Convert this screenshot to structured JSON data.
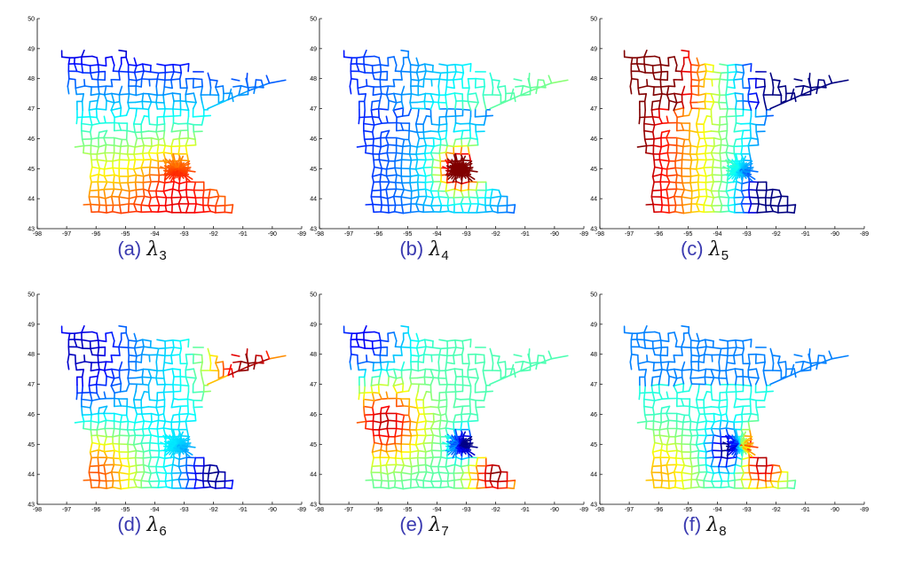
{
  "figure": {
    "panels": [
      {
        "caption_label": "(a)",
        "eigen_symbol": "λ",
        "eigen_index": "3"
      },
      {
        "caption_label": "(b)",
        "eigen_symbol": "λ",
        "eigen_index": "4"
      },
      {
        "caption_label": "(c)",
        "eigen_symbol": "λ",
        "eigen_index": "5"
      },
      {
        "caption_label": "(d)",
        "eigen_symbol": "λ",
        "eigen_index": "6"
      },
      {
        "caption_label": "(e)",
        "eigen_symbol": "λ",
        "eigen_index": "7"
      },
      {
        "caption_label": "(f)",
        "eigen_symbol": "λ",
        "eigen_index": "8"
      }
    ]
  },
  "chart_data": [
    {
      "type": "line",
      "title": "",
      "xlabel": "",
      "ylabel": "",
      "xlim": [
        -98,
        -89
      ],
      "ylim": [
        43,
        50
      ],
      "xticks": [
        "-98",
        "-97",
        "-96",
        "-95",
        "-94",
        "-93",
        "-92",
        "-91",
        "-90",
        "-89"
      ],
      "yticks": [
        "43",
        "44",
        "45",
        "46",
        "47",
        "48",
        "49",
        "50"
      ],
      "grid": false,
      "colormap": "jet",
      "caption": "(a) λ3",
      "pattern": "north-south gradient: blue north, red south-east"
    },
    {
      "type": "line",
      "title": "",
      "xlabel": "",
      "ylabel": "",
      "xlim": [
        -98,
        -89
      ],
      "ylim": [
        43,
        50
      ],
      "xticks": [
        "-98",
        "-97",
        "-96",
        "-95",
        "-94",
        "-93",
        "-92",
        "-91",
        "-90",
        "-89"
      ],
      "yticks": [
        "43",
        "44",
        "45",
        "46",
        "47",
        "48",
        "49",
        "50"
      ],
      "grid": false,
      "colormap": "jet",
      "caption": "(b) λ4",
      "pattern": "red concentrated near (-93.2, 45.0), blue elsewhere"
    },
    {
      "type": "line",
      "title": "",
      "xlabel": "",
      "ylabel": "",
      "xlim": [
        -98,
        -89
      ],
      "ylim": [
        43,
        50
      ],
      "xticks": [
        "-98",
        "-97",
        "-96",
        "-95",
        "-94",
        "-93",
        "-92",
        "-91",
        "-90",
        "-89"
      ],
      "yticks": [
        "43",
        "44",
        "45",
        "46",
        "47",
        "48",
        "49",
        "50"
      ],
      "grid": false,
      "colormap": "jet",
      "caption": "(c) λ5",
      "pattern": "red south-west, blue north-east and south-east"
    },
    {
      "type": "line",
      "title": "",
      "xlabel": "",
      "ylabel": "",
      "xlim": [
        -98,
        -89
      ],
      "ylim": [
        43,
        50
      ],
      "xticks": [
        "-98",
        "-97",
        "-96",
        "-95",
        "-94",
        "-93",
        "-92",
        "-91",
        "-90",
        "-89"
      ],
      "yticks": [
        "43",
        "44",
        "45",
        "46",
        "47",
        "48",
        "49",
        "50"
      ],
      "grid": false,
      "colormap": "jet",
      "caption": "(d) λ6",
      "pattern": "red north-east arm and south-west, blue north-west and south-east"
    },
    {
      "type": "line",
      "title": "",
      "xlabel": "",
      "ylabel": "",
      "xlim": [
        -98,
        -89
      ],
      "ylim": [
        43,
        50
      ],
      "xticks": [
        "-98",
        "-97",
        "-96",
        "-95",
        "-94",
        "-93",
        "-92",
        "-91",
        "-90",
        "-89"
      ],
      "yticks": [
        "43",
        "44",
        "45",
        "46",
        "47",
        "48",
        "49",
        "50"
      ],
      "grid": false,
      "colormap": "jet",
      "caption": "(e) λ7",
      "pattern": "red west-central band and south-east, blue north-west and metro"
    },
    {
      "type": "line",
      "title": "",
      "xlabel": "",
      "ylabel": "",
      "xlim": [
        -98,
        -89
      ],
      "ylim": [
        43,
        50
      ],
      "xticks": [
        "-98",
        "-97",
        "-96",
        "-95",
        "-94",
        "-93",
        "-92",
        "-91",
        "-90",
        "-89"
      ],
      "yticks": [
        "43",
        "44",
        "45",
        "46",
        "47",
        "48",
        "49",
        "50"
      ],
      "grid": false,
      "colormap": "jet",
      "caption": "(f) λ8",
      "pattern": "blue metro and north, red east of metro and south-east, yellow south-west"
    }
  ]
}
